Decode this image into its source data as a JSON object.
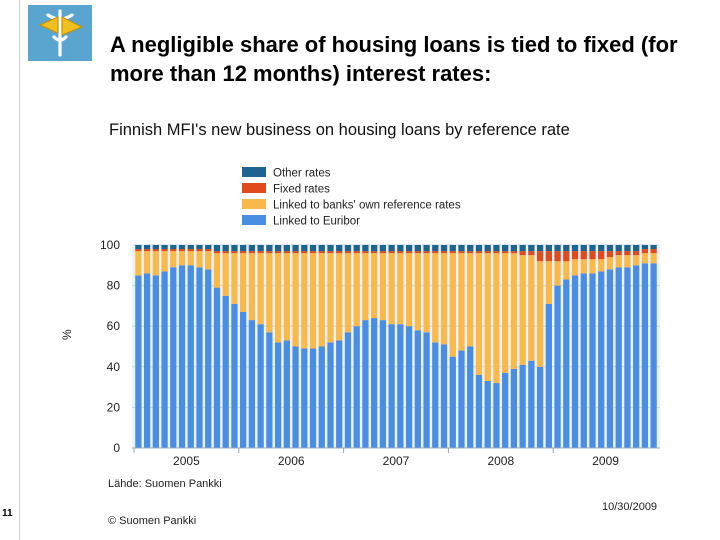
{
  "slide": {
    "title": "A negligible share of housing loans is tied to fixed (for more than 12 months) interest rates:",
    "page_number": "11",
    "source_note": "Lähde: Suomen Pankki",
    "date": "10/30/2009",
    "footer": "© Suomen Pankki",
    "logo_icon": "caduceus-icon"
  },
  "colors": {
    "other": "#1f6390",
    "fixed": "#e04a1c",
    "banks_own": "#f9b94b",
    "euribor": "#4a8ee4"
  },
  "chart_data": {
    "type": "bar",
    "stacked": true,
    "title": "Finnish MFI's new business on housing loans by reference rate",
    "xlabel": "",
    "ylabel": "%",
    "ylim": [
      0,
      100
    ],
    "yticks": [
      0,
      20,
      40,
      60,
      80,
      100
    ],
    "grid": true,
    "legend_position": "top-left",
    "x_tick_labels": [
      "2005",
      "2006",
      "2007",
      "2008",
      "2009"
    ],
    "series": [
      {
        "name": "Linked to Euribor",
        "key": "euribor",
        "values": [
          85,
          86,
          85,
          87,
          89,
          90,
          90,
          89,
          88,
          79,
          75,
          71,
          67,
          63,
          61,
          57,
          52,
          53,
          50,
          49,
          49,
          50,
          52,
          53,
          57,
          60,
          63,
          64,
          63,
          61,
          61,
          60,
          58,
          57,
          52,
          51,
          45,
          48,
          50,
          36,
          33,
          32,
          37,
          39,
          41,
          43,
          40,
          71,
          80,
          83,
          85,
          86,
          86,
          87,
          88,
          89,
          89,
          90,
          91,
          91
        ]
      },
      {
        "name": "Linked to banks' own reference rates",
        "key": "banks_own",
        "values": [
          12,
          11,
          12,
          10,
          8,
          7,
          7,
          8,
          9,
          17,
          21,
          25,
          29,
          33,
          35,
          39,
          44,
          43,
          46,
          47,
          47,
          46,
          44,
          43,
          39,
          36,
          33,
          32,
          33,
          35,
          35,
          36,
          38,
          39,
          44,
          45,
          51,
          48,
          46,
          60,
          63,
          64,
          59,
          57,
          54,
          52,
          52,
          21,
          12,
          9,
          8,
          7,
          7,
          6,
          6,
          6,
          6,
          5,
          5,
          5
        ]
      },
      {
        "name": "Fixed rates",
        "key": "fixed",
        "values": [
          1,
          1,
          1,
          1,
          1,
          1,
          1,
          1,
          1,
          1,
          1,
          1,
          1,
          1,
          1,
          1,
          1,
          1,
          1,
          1,
          1,
          1,
          1,
          1,
          1,
          1,
          1,
          1,
          1,
          1,
          1,
          1,
          1,
          1,
          1,
          1,
          1,
          1,
          1,
          1,
          1,
          1,
          1,
          1,
          2,
          2,
          5,
          5,
          5,
          5,
          4,
          4,
          4,
          4,
          3,
          2,
          2,
          2,
          2,
          2
        ]
      },
      {
        "name": "Other rates",
        "key": "other",
        "values": [
          2,
          2,
          2,
          2,
          2,
          2,
          2,
          2,
          2,
          3,
          3,
          3,
          3,
          3,
          3,
          3,
          3,
          3,
          3,
          3,
          3,
          3,
          3,
          3,
          3,
          3,
          3,
          3,
          3,
          3,
          3,
          3,
          3,
          3,
          3,
          3,
          3,
          3,
          3,
          3,
          3,
          3,
          3,
          3,
          3,
          3,
          3,
          3,
          3,
          3,
          3,
          3,
          3,
          3,
          3,
          3,
          3,
          3,
          2,
          2
        ]
      }
    ]
  }
}
